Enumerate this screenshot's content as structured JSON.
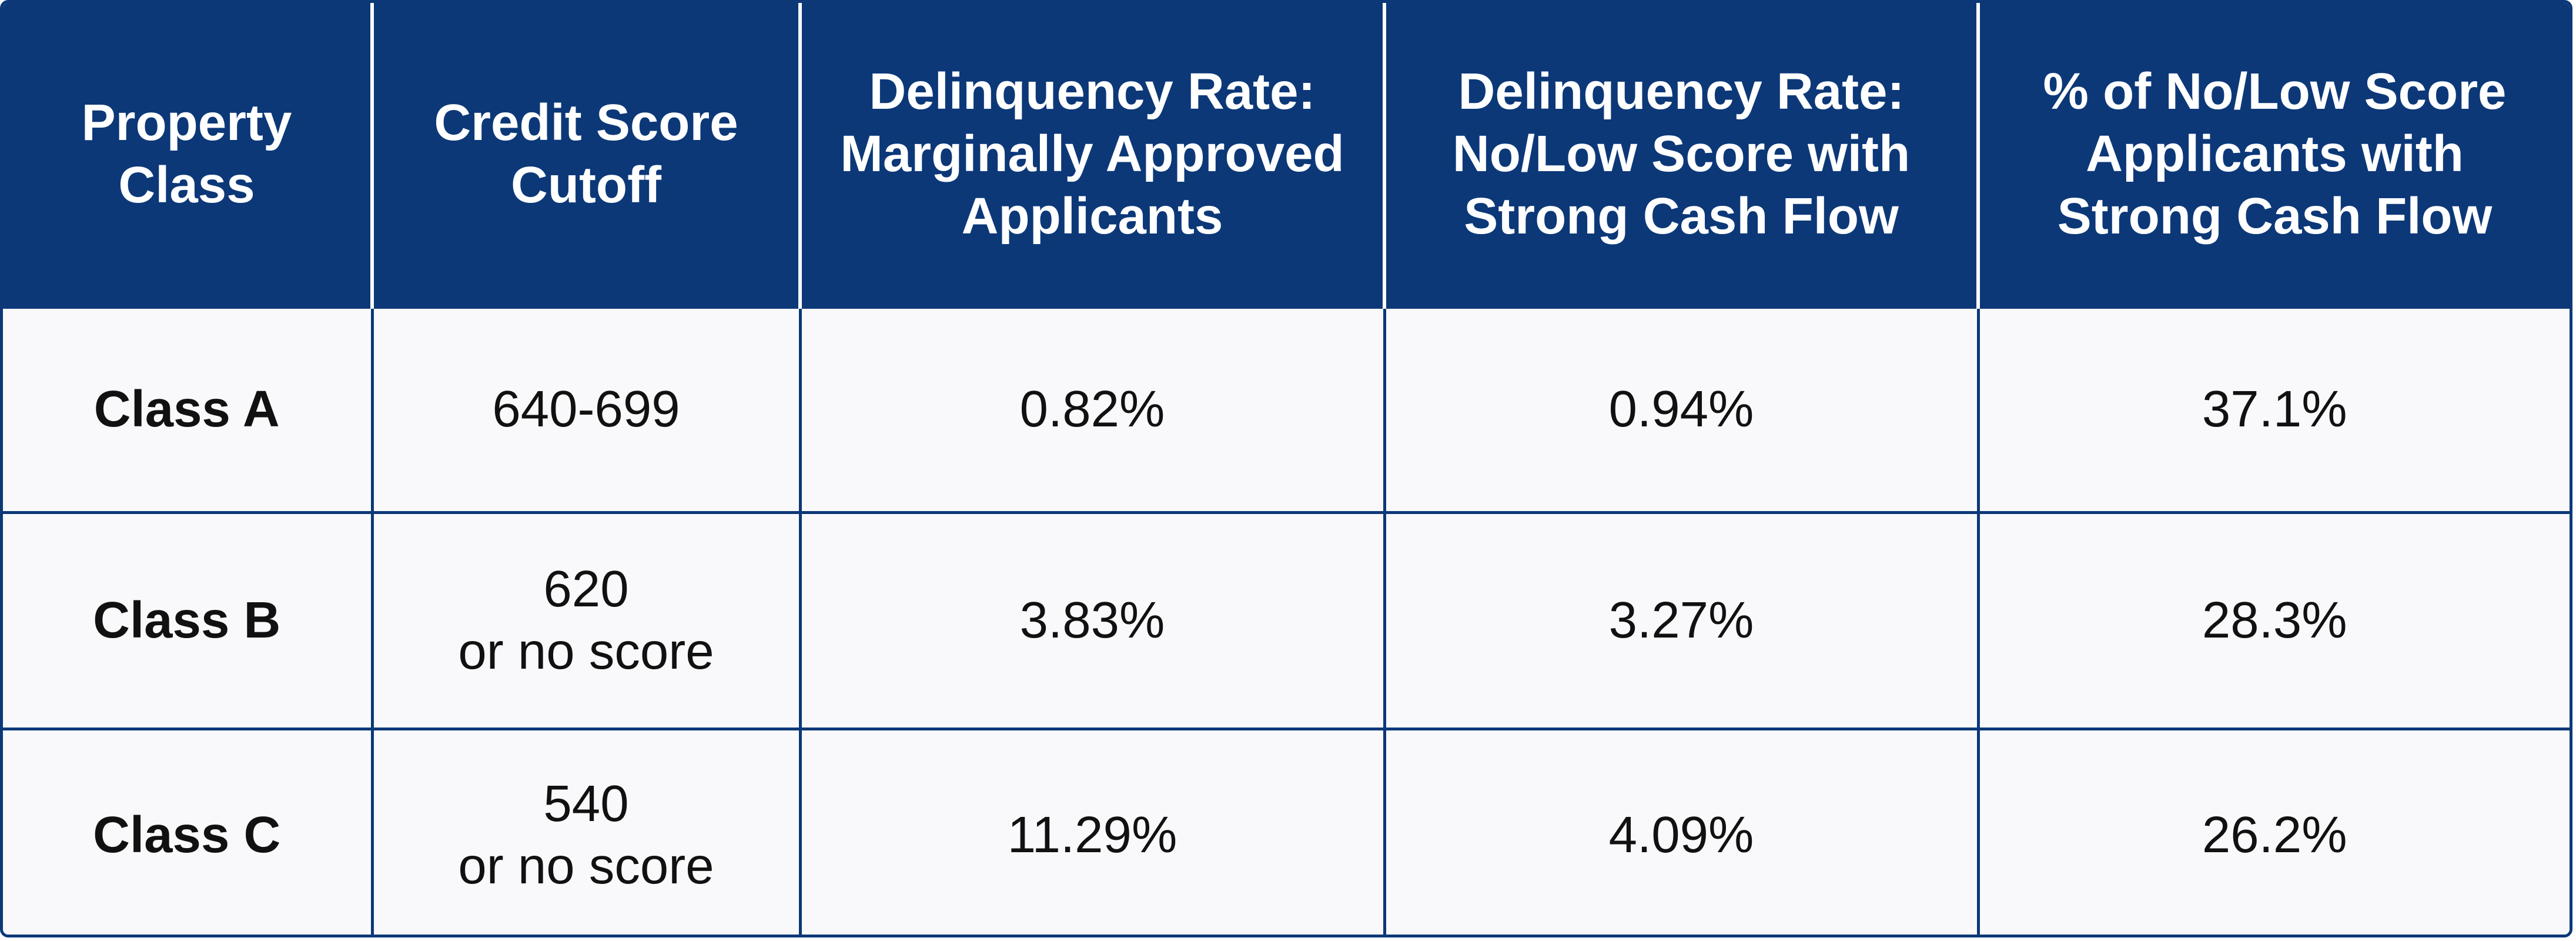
{
  "table": {
    "headers": [
      "Property\nClass",
      "Credit Score\nCutoff",
      "Delinquency Rate:\nMarginally Approved\nApplicants",
      "Delinquency Rate:\nNo/Low Score with\nStrong Cash Flow",
      "% of No/Low Score\nApplicants with\nStrong Cash Flow"
    ],
    "rows": [
      [
        "Class A",
        "640-699",
        "0.82%",
        "0.94%",
        "37.1%"
      ],
      [
        "Class B",
        "620\nor no score",
        "3.83%",
        "3.27%",
        "28.3%"
      ],
      [
        "Class C",
        "540\nor no score",
        "11.29%",
        "4.09%",
        "26.2%"
      ]
    ]
  },
  "colors": {
    "header_background": "#0c3878",
    "header_text": "#ffffff",
    "cell_background": "#f9f9fb",
    "cell_text": "#111111",
    "border": "#0c3878"
  }
}
